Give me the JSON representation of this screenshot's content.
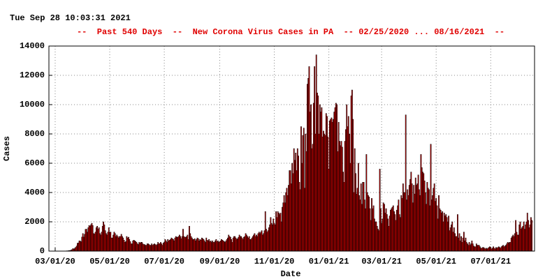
{
  "chart_data": {
    "type": "bar",
    "timestamp": "Tue Sep 28 10:03:31 2021",
    "title": "--  Past 540 Days  --  New Corona Virus Cases in PA  -- 02/25/2020 ... 08/16/2021  --",
    "x_label": "Date",
    "y_label": "Cases",
    "color": "#c00000",
    "grid": true,
    "xlim": [
      "2020-02-23",
      "2021-08-19"
    ],
    "xticks": [
      {
        "value": "2020-03-01",
        "label": "03/01/20"
      },
      {
        "value": "2020-05-01",
        "label": "05/01/20"
      },
      {
        "value": "2020-07-01",
        "label": "07/01/20"
      },
      {
        "value": "2020-09-01",
        "label": "09/01/20"
      },
      {
        "value": "2020-11-01",
        "label": "11/01/20"
      },
      {
        "value": "2021-01-01",
        "label": "01/01/21"
      },
      {
        "value": "2021-03-01",
        "label": "03/01/21"
      },
      {
        "value": "2021-05-01",
        "label": "05/01/21"
      },
      {
        "value": "2021-07-01",
        "label": "07/01/21"
      }
    ],
    "ylim": [
      0,
      14000
    ],
    "yticks": [
      0,
      2000,
      4000,
      6000,
      8000,
      10000,
      12000,
      14000
    ],
    "x": [
      "2020-02-25",
      "2020-02-26",
      "2020-02-27",
      "2020-02-28",
      "2020-02-29",
      "2020-03-01",
      "2020-03-02",
      "2020-03-03",
      "2020-03-04",
      "2020-03-05",
      "2020-03-06",
      "2020-03-07",
      "2020-03-08",
      "2020-03-09",
      "2020-03-10",
      "2020-03-11",
      "2020-03-12",
      "2020-03-13",
      "2020-03-14",
      "2020-03-15",
      "2020-03-16",
      "2020-03-17",
      "2020-03-18",
      "2020-03-19",
      "2020-03-20",
      "2020-03-21",
      "2020-03-22",
      "2020-03-23",
      "2020-03-24",
      "2020-03-25",
      "2020-03-26",
      "2020-03-27",
      "2020-03-28",
      "2020-03-29",
      "2020-03-30",
      "2020-03-31",
      "2020-04-01",
      "2020-04-02",
      "2020-04-03",
      "2020-04-04",
      "2020-04-05",
      "2020-04-06",
      "2020-04-07",
      "2020-04-08",
      "2020-04-09",
      "2020-04-10",
      "2020-04-11",
      "2020-04-12",
      "2020-04-13",
      "2020-04-14",
      "2020-04-15",
      "2020-04-16",
      "2020-04-17",
      "2020-04-18",
      "2020-04-19",
      "2020-04-20",
      "2020-04-21",
      "2020-04-22",
      "2020-04-23",
      "2020-04-24",
      "2020-04-25",
      "2020-04-26",
      "2020-04-27",
      "2020-04-28",
      "2020-04-29",
      "2020-04-30",
      "2020-05-01",
      "2020-05-02",
      "2020-05-03",
      "2020-05-04",
      "2020-05-05",
      "2020-05-06",
      "2020-05-07",
      "2020-05-08",
      "2020-05-09",
      "2020-05-10",
      "2020-05-11",
      "2020-05-12",
      "2020-05-13",
      "2020-05-14",
      "2020-05-15",
      "2020-05-16",
      "2020-05-17",
      "2020-05-18",
      "2020-05-19",
      "2020-05-20",
      "2020-05-21",
      "2020-05-22",
      "2020-05-23",
      "2020-05-24",
      "2020-05-25",
      "2020-05-26",
      "2020-05-27",
      "2020-05-28",
      "2020-05-29",
      "2020-05-30",
      "2020-05-31",
      "2020-06-01",
      "2020-06-02",
      "2020-06-03",
      "2020-06-04",
      "2020-06-05",
      "2020-06-06",
      "2020-06-07",
      "2020-06-08",
      "2020-06-09",
      "2020-06-10",
      "2020-06-11",
      "2020-06-12",
      "2020-06-13",
      "2020-06-14",
      "2020-06-15",
      "2020-06-16",
      "2020-06-17",
      "2020-06-18",
      "2020-06-19",
      "2020-06-20",
      "2020-06-21",
      "2020-06-22",
      "2020-06-23",
      "2020-06-24",
      "2020-06-25",
      "2020-06-26",
      "2020-06-27",
      "2020-06-28",
      "2020-06-29",
      "2020-06-30",
      "2020-07-01",
      "2020-07-02",
      "2020-07-03",
      "2020-07-04",
      "2020-07-05",
      "2020-07-06",
      "2020-07-07",
      "2020-07-08",
      "2020-07-09",
      "2020-07-10",
      "2020-07-11",
      "2020-07-12",
      "2020-07-13",
      "2020-07-14",
      "2020-07-15",
      "2020-07-16",
      "2020-07-17",
      "2020-07-18",
      "2020-07-19",
      "2020-07-20",
      "2020-07-21",
      "2020-07-22",
      "2020-07-23",
      "2020-07-24",
      "2020-07-25",
      "2020-07-26",
      "2020-07-27",
      "2020-07-28",
      "2020-07-29",
      "2020-07-30",
      "2020-07-31",
      "2020-08-01",
      "2020-08-02",
      "2020-08-03",
      "2020-08-04",
      "2020-08-05",
      "2020-08-06",
      "2020-08-07",
      "2020-08-08",
      "2020-08-09",
      "2020-08-10",
      "2020-08-11",
      "2020-08-12",
      "2020-08-13",
      "2020-08-14",
      "2020-08-15",
      "2020-08-16",
      "2020-08-17",
      "2020-08-18",
      "2020-08-19",
      "2020-08-20",
      "2020-08-21",
      "2020-08-22",
      "2020-08-23",
      "2020-08-24",
      "2020-08-25",
      "2020-08-26",
      "2020-08-27",
      "2020-08-28",
      "2020-08-29",
      "2020-08-30",
      "2020-08-31",
      "2020-09-01",
      "2020-09-02",
      "2020-09-03",
      "2020-09-04",
      "2020-09-05",
      "2020-09-06",
      "2020-09-07",
      "2020-09-08",
      "2020-09-09",
      "2020-09-10",
      "2020-09-11",
      "2020-09-12",
      "2020-09-13",
      "2020-09-14",
      "2020-09-15",
      "2020-09-16",
      "2020-09-17",
      "2020-09-18",
      "2020-09-19",
      "2020-09-20",
      "2020-09-21",
      "2020-09-22",
      "2020-09-23",
      "2020-09-24",
      "2020-09-25",
      "2020-09-26",
      "2020-09-27",
      "2020-09-28",
      "2020-09-29",
      "2020-09-30",
      "2020-10-01",
      "2020-10-02",
      "2020-10-03",
      "2020-10-04",
      "2020-10-05",
      "2020-10-06",
      "2020-10-07",
      "2020-10-08",
      "2020-10-09",
      "2020-10-10",
      "2020-10-11",
      "2020-10-12",
      "2020-10-13",
      "2020-10-14",
      "2020-10-15",
      "2020-10-16",
      "2020-10-17",
      "2020-10-18",
      "2020-10-19",
      "2020-10-20",
      "2020-10-21",
      "2020-10-22",
      "2020-10-23",
      "2020-10-24",
      "2020-10-25",
      "2020-10-26",
      "2020-10-27",
      "2020-10-28",
      "2020-10-29",
      "2020-10-30",
      "2020-10-31",
      "2020-11-01",
      "2020-11-02",
      "2020-11-03",
      "2020-11-04",
      "2020-11-05",
      "2020-11-06",
      "2020-11-07",
      "2020-11-08",
      "2020-11-09",
      "2020-11-10",
      "2020-11-11",
      "2020-11-12",
      "2020-11-13",
      "2020-11-14",
      "2020-11-15",
      "2020-11-16",
      "2020-11-17",
      "2020-11-18",
      "2020-11-19",
      "2020-11-20",
      "2020-11-21",
      "2020-11-22",
      "2020-11-23",
      "2020-11-24",
      "2020-11-25",
      "2020-11-26",
      "2020-11-27",
      "2020-11-28",
      "2020-11-29",
      "2020-11-30",
      "2020-12-01",
      "2020-12-02",
      "2020-12-03",
      "2020-12-04",
      "2020-12-05",
      "2020-12-06",
      "2020-12-07",
      "2020-12-08",
      "2020-12-09",
      "2020-12-10",
      "2020-12-11",
      "2020-12-12",
      "2020-12-13",
      "2020-12-14",
      "2020-12-15",
      "2020-12-16",
      "2020-12-17",
      "2020-12-18",
      "2020-12-19",
      "2020-12-20",
      "2020-12-21",
      "2020-12-22",
      "2020-12-23",
      "2020-12-24",
      "2020-12-25",
      "2020-12-26",
      "2020-12-27",
      "2020-12-28",
      "2020-12-29",
      "2020-12-30",
      "2020-12-31",
      "2021-01-01",
      "2021-01-02",
      "2021-01-03",
      "2021-01-04",
      "2021-01-05",
      "2021-01-06",
      "2021-01-07",
      "2021-01-08",
      "2021-01-09",
      "2021-01-10",
      "2021-01-11",
      "2021-01-12",
      "2021-01-13",
      "2021-01-14",
      "2021-01-15",
      "2021-01-16",
      "2021-01-17",
      "2021-01-18",
      "2021-01-19",
      "2021-01-20",
      "2021-01-21",
      "2021-01-22",
      "2021-01-23",
      "2021-01-24",
      "2021-01-25",
      "2021-01-26",
      "2021-01-27",
      "2021-01-28",
      "2021-01-29",
      "2021-01-30",
      "2021-01-31",
      "2021-02-01",
      "2021-02-02",
      "2021-02-03",
      "2021-02-04",
      "2021-02-05",
      "2021-02-06",
      "2021-02-07",
      "2021-02-08",
      "2021-02-09",
      "2021-02-10",
      "2021-02-11",
      "2021-02-12",
      "2021-02-13",
      "2021-02-14",
      "2021-02-15",
      "2021-02-16",
      "2021-02-17",
      "2021-02-18",
      "2021-02-19",
      "2021-02-20",
      "2021-02-21",
      "2021-02-22",
      "2021-02-23",
      "2021-02-24",
      "2021-02-25",
      "2021-02-26",
      "2021-02-27",
      "2021-02-28",
      "2021-03-01",
      "2021-03-02",
      "2021-03-03",
      "2021-03-04",
      "2021-03-05",
      "2021-03-06",
      "2021-03-07",
      "2021-03-08",
      "2021-03-09",
      "2021-03-10",
      "2021-03-11",
      "2021-03-12",
      "2021-03-13",
      "2021-03-14",
      "2021-03-15",
      "2021-03-16",
      "2021-03-17",
      "2021-03-18",
      "2021-03-19",
      "2021-03-20",
      "2021-03-21",
      "2021-03-22",
      "2021-03-23",
      "2021-03-24",
      "2021-03-25",
      "2021-03-26",
      "2021-03-27",
      "2021-03-28",
      "2021-03-29",
      "2021-03-30",
      "2021-03-31",
      "2021-04-01",
      "2021-04-02",
      "2021-04-03",
      "2021-04-04",
      "2021-04-05",
      "2021-04-06",
      "2021-04-07",
      "2021-04-08",
      "2021-04-09",
      "2021-04-10",
      "2021-04-11",
      "2021-04-12",
      "2021-04-13",
      "2021-04-14",
      "2021-04-15",
      "2021-04-16",
      "2021-04-17",
      "2021-04-18",
      "2021-04-19",
      "2021-04-20",
      "2021-04-21",
      "2021-04-22",
      "2021-04-23",
      "2021-04-24",
      "2021-04-25",
      "2021-04-26",
      "2021-04-27",
      "2021-04-28",
      "2021-04-29",
      "2021-04-30",
      "2021-05-01",
      "2021-05-02",
      "2021-05-03",
      "2021-05-04",
      "2021-05-05",
      "2021-05-06",
      "2021-05-07",
      "2021-05-08",
      "2021-05-09",
      "2021-05-10",
      "2021-05-11",
      "2021-05-12",
      "2021-05-13",
      "2021-05-14",
      "2021-05-15",
      "2021-05-16",
      "2021-05-17",
      "2021-05-18",
      "2021-05-19",
      "2021-05-20",
      "2021-05-21",
      "2021-05-22",
      "2021-05-23",
      "2021-05-24",
      "2021-05-25",
      "2021-05-26",
      "2021-05-27",
      "2021-05-28",
      "2021-05-29",
      "2021-05-30",
      "2021-05-31",
      "2021-06-01",
      "2021-06-02",
      "2021-06-03",
      "2021-06-04",
      "2021-06-05",
      "2021-06-06",
      "2021-06-07",
      "2021-06-08",
      "2021-06-09",
      "2021-06-10",
      "2021-06-11",
      "2021-06-12",
      "2021-06-13",
      "2021-06-14",
      "2021-06-15",
      "2021-06-16",
      "2021-06-17",
      "2021-06-18",
      "2021-06-19",
      "2021-06-20",
      "2021-06-21",
      "2021-06-22",
      "2021-06-23",
      "2021-06-24",
      "2021-06-25",
      "2021-06-26",
      "2021-06-27",
      "2021-06-28",
      "2021-06-29",
      "2021-06-30",
      "2021-07-01",
      "2021-07-02",
      "2021-07-03",
      "2021-07-04",
      "2021-07-05",
      "2021-07-06",
      "2021-07-07",
      "2021-07-08",
      "2021-07-09",
      "2021-07-10",
      "2021-07-11",
      "2021-07-12",
      "2021-07-13",
      "2021-07-14",
      "2021-07-15",
      "2021-07-16",
      "2021-07-17",
      "2021-07-18",
      "2021-07-19",
      "2021-07-20",
      "2021-07-21",
      "2021-07-22",
      "2021-07-23",
      "2021-07-24",
      "2021-07-25",
      "2021-07-26",
      "2021-07-27",
      "2021-07-28",
      "2021-07-29",
      "2021-07-30",
      "2021-07-31",
      "2021-08-01",
      "2021-08-02",
      "2021-08-03",
      "2021-08-04",
      "2021-08-05",
      "2021-08-06",
      "2021-08-07",
      "2021-08-08",
      "2021-08-09",
      "2021-08-10",
      "2021-08-11",
      "2021-08-12",
      "2021-08-13",
      "2021-08-14",
      "2021-08-15",
      "2021-08-16"
    ],
    "values": [
      0,
      0,
      0,
      0,
      0,
      0,
      0,
      0,
      0,
      0,
      2,
      0,
      4,
      2,
      4,
      6,
      10,
      8,
      20,
      16,
      30,
      40,
      50,
      70,
      110,
      180,
      130,
      200,
      260,
      350,
      540,
      560,
      700,
      690,
      640,
      960,
      1200,
      960,
      1150,
      1490,
      1500,
      1300,
      1600,
      1750,
      1700,
      1800,
      1900,
      1750,
      1200,
      1170,
      1300,
      1600,
      1700,
      1500,
      1600,
      1200,
      1100,
      1300,
      1700,
      2000,
      1800,
      1400,
      1200,
      1100,
      1300,
      1600,
      1300,
      1300,
      900,
      900,
      1100,
      1300,
      1200,
      1000,
      1100,
      1000,
      900,
      1000,
      1000,
      1150,
      1000,
      900,
      750,
      600,
      650,
      1000,
      900,
      950,
      800,
      650,
      500,
      500,
      700,
      750,
      700,
      650,
      600,
      500,
      450,
      600,
      550,
      600,
      600,
      500,
      450,
      450,
      400,
      400,
      500,
      500,
      450,
      400,
      400,
      500,
      400,
      450,
      500,
      450,
      400,
      450,
      600,
      500,
      520,
      600,
      500,
      400,
      550,
      600,
      800,
      700,
      600,
      800,
      700,
      750,
      800,
      900,
      850,
      800,
      700,
      900,
      1000,
      950,
      950,
      1000,
      1100,
      1000,
      850,
      1000,
      1500,
      1000,
      950,
      950,
      1000,
      1100,
      800,
      1700,
      1200,
      1000,
      900,
      800,
      800,
      850,
      700,
      800,
      900,
      850,
      700,
      800,
      750,
      900,
      850,
      800,
      700,
      600,
      900,
      750,
      700,
      800,
      650,
      700,
      600,
      700,
      600,
      600,
      700,
      800,
      650,
      700,
      600,
      650,
      700,
      800,
      750,
      700,
      650,
      600,
      700,
      800,
      900,
      1100,
      1000,
      950,
      800,
      600,
      900,
      1000,
      1000,
      900,
      800,
      850,
      950,
      1100,
      1000,
      1000,
      900,
      800,
      950,
      1000,
      1200,
      1100,
      1000,
      900,
      1000,
      800,
      800,
      900,
      1000,
      1100,
      1200,
      1000,
      1100,
      1000,
      1200,
      1300,
      1200,
      1300,
      1400,
      1100,
      1200,
      1400,
      2700,
      1500,
      1300,
      1400,
      1600,
      1800,
      2300,
      1900,
      1800,
      2200,
      1900,
      1800,
      2700,
      2300,
      2700,
      2600,
      2500,
      2600,
      2000,
      3000,
      3300,
      3800,
      3300,
      4000,
      4300,
      3800,
      4500,
      5500,
      5500,
      4600,
      6000,
      5300,
      7000,
      6200,
      6700,
      5500,
      7000,
      6500,
      4700,
      4200,
      8500,
      6000,
      7900,
      8400,
      4300,
      8000,
      6800,
      11400,
      11800,
      12600,
      9500,
      10000,
      7000,
      7300,
      10100,
      12600,
      8000,
      13400,
      10800,
      10600,
      8000,
      10000,
      9500,
      9800,
      7800,
      8200,
      8000,
      7900,
      9400,
      9200,
      7800,
      5600,
      8900,
      9000,
      9100,
      8800,
      9000,
      9500,
      9800,
      10100,
      10000,
      6800,
      8800,
      7500,
      7200,
      7500,
      7100,
      5400,
      4700,
      7500,
      8300,
      10000,
      8500,
      9200,
      8000,
      6000,
      10600,
      11000,
      9000,
      4000,
      7000,
      5300,
      3900,
      4300,
      6000,
      3800,
      3500,
      4600,
      3200,
      4700,
      4700,
      3500,
      2900,
      6600,
      4000,
      3800,
      3700,
      2900,
      2100,
      3600,
      2900,
      3100,
      2200,
      2000,
      2000,
      1700,
      1500,
      1400,
      5600,
      2900,
      1900,
      2200,
      3300,
      3200,
      2600,
      2900,
      2500,
      2200,
      1700,
      2400,
      2800,
      2900,
      3000,
      3100,
      2700,
      2500,
      2100,
      2800,
      3100,
      3500,
      2500,
      2300,
      3800,
      3600,
      4600,
      4000,
      4000,
      9300,
      3500,
      4200,
      3800,
      4500,
      4900,
      5400,
      4600,
      3300,
      4500,
      3900,
      5000,
      4500,
      4600,
      5200,
      4200,
      3800,
      6600,
      5700,
      5400,
      5300,
      4800,
      4000,
      3200,
      4700,
      4300,
      4200,
      3100,
      7300,
      3500,
      3800,
      4300,
      4600,
      3400,
      3600,
      3100,
      2200,
      3800,
      2900,
      2800,
      2600,
      2700,
      2000,
      2600,
      2400,
      2500,
      2300,
      2000,
      2400,
      1400,
      1600,
      1800,
      2000,
      1300,
      1600,
      1200,
      1000,
      1000,
      2500,
      900,
      1200,
      700,
      1000,
      600,
      900,
      1300,
      700,
      900,
      600,
      500,
      400,
      600,
      400,
      500,
      700,
      500,
      350,
      300,
      300,
      500,
      400,
      400,
      400,
      300,
      200,
      200,
      250,
      250,
      200,
      150,
      200,
      150,
      200,
      250,
      300,
      250,
      150,
      200,
      300,
      200,
      150,
      250,
      200,
      250,
      300,
      250,
      200,
      300,
      350,
      400,
      300,
      350,
      400,
      500,
      600,
      550,
      600,
      600,
      900,
      1000,
      1100,
      1000,
      1200,
      2100,
      1300,
      1100,
      1100,
      1800,
      2000,
      1500,
      1600,
      1700,
      2000,
      1500,
      1800,
      2000,
      2600,
      2100,
      1600,
      1800,
      2300,
      2100
    ]
  }
}
